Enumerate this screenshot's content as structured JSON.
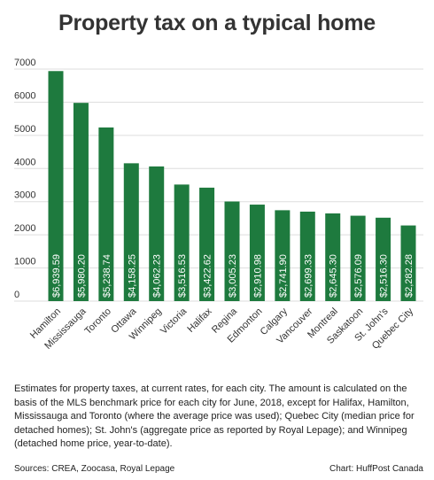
{
  "chart_data": {
    "type": "bar",
    "title": "Property tax on a typical home",
    "categories": [
      "Hamilton",
      "Mississauga",
      "Toronto",
      "Ottawa",
      "Winnipeg",
      "Victoria",
      "Halifax",
      "Regina",
      "Edmonton",
      "Calgary",
      "Vancouver",
      "Montreal",
      "Saskatoon",
      "St. John's",
      "Quebec City"
    ],
    "values": [
      6939.59,
      5980.2,
      5238.74,
      4158.25,
      4062.23,
      3516.53,
      3422.62,
      3005.23,
      2910.98,
      2741.9,
      2699.33,
      2645.3,
      2576.09,
      2516.3,
      2282.28
    ],
    "data_labels": [
      "$6,939.59",
      "$5,980.20",
      "$5,238.74",
      "$4,158.25",
      "$4,062.23",
      "$3,516.53",
      "$3,422.62",
      "$3,005.23",
      "$2,910.98",
      "$2,741.90",
      "$2,699.33",
      "$2,645.30",
      "$2,576.09",
      "$2,516.30",
      "$2,282.28"
    ],
    "y_ticks": [
      0,
      1000,
      2000,
      3000,
      4000,
      5000,
      6000,
      7000
    ],
    "ylim": [
      0,
      7000
    ],
    "grid": true,
    "xlabel": "",
    "ylabel": "",
    "bar_color": "#1e7a3e",
    "grid_color": "#dddddd"
  },
  "notes": "Estimates for property taxes, at current rates, for each city. The amount is calculated on the basis of the MLS benchmark price for each city for June, 2018, except for Halifax, Hamilton, Mississauga and Toronto (where the average price was used); Quebec City (median price for detached homes); St. John's (aggregate price as reported by Royal Lepage); and Winnipeg (detached home price, year-to-date).",
  "sources": "Sources: CREA, Zoocasa, Royal Lepage",
  "credit": "Chart: HuffPost Canada"
}
